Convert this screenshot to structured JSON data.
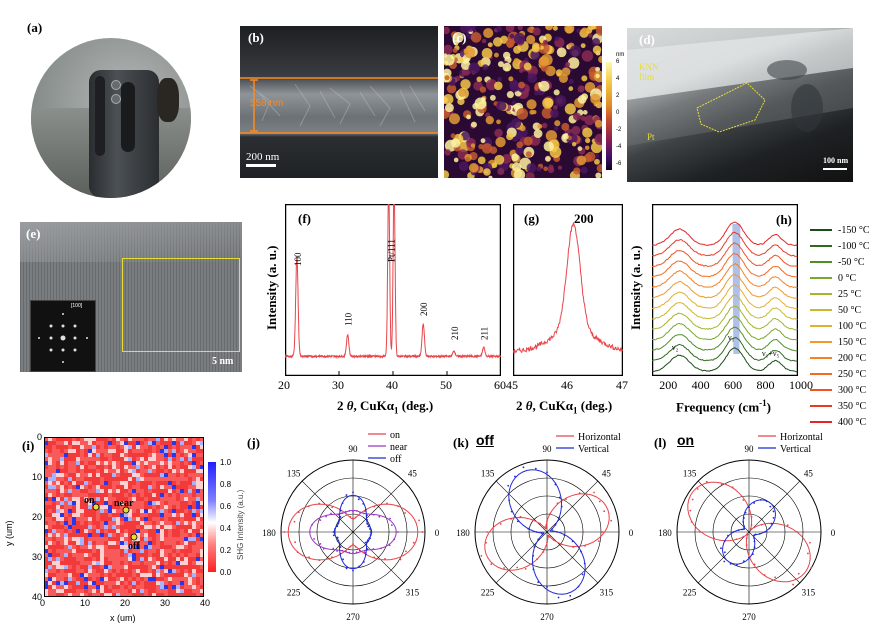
{
  "panel_a": {
    "label": "(a)"
  },
  "panel_b": {
    "label": "(b)",
    "thickness": "558 nm",
    "scalebar": "200 nm"
  },
  "panel_c": {
    "label": "(c)",
    "unit": "nm",
    "ticks": [
      "6",
      "4",
      "2",
      "0",
      "-2",
      "-4",
      "-6"
    ]
  },
  "panel_d": {
    "label": "(d)",
    "film": "KNN\nfilm",
    "film_l1": "KNN",
    "film_l2": "film",
    "substrate": "Pt",
    "scalebar": "100 nm"
  },
  "panel_e": {
    "label": "(e)",
    "scalebar": "5 nm",
    "inset_label": "[100]"
  },
  "panel_f": {
    "label": "(f)",
    "ylabel": "Intensity (a. u.)",
    "xlabel_pre": "2 ",
    "xlabel_theta": "θ",
    "xlabel_post": ", CuKα",
    "xlabel_sub": "1",
    "xlabel_end": " (deg.)",
    "xticks": [
      "20",
      "30",
      "40",
      "50",
      "60"
    ],
    "peaks": [
      "100",
      "110",
      "Pt/111",
      "200",
      "210",
      "211"
    ]
  },
  "panel_g": {
    "label": "(g)",
    "peak": "200",
    "xticks": [
      "45",
      "46",
      "47"
    ]
  },
  "panel_h": {
    "label": "(h)",
    "ylabel": "Intensity (a. u.)",
    "xlabel": "Frequency (cm",
    "xlabel_sup": "-1",
    "xlabel_end": ")",
    "xticks": [
      "200",
      "400",
      "600",
      "800",
      "1000"
    ],
    "modes": [
      "ν₂",
      "ν₁",
      "ν₁+ν₅"
    ],
    "legend": [
      "-150 °C",
      "-100 °C",
      "-50 °C",
      "0 °C",
      "25 °C",
      "50 °C",
      "100 °C",
      "150 °C",
      "200 °C",
      "250 °C",
      "300 °C",
      "350 °C",
      "400 °C"
    ],
    "colors": [
      "#1a4d1a",
      "#2f6b1f",
      "#4f8f28",
      "#7aa82a",
      "#a5b52c",
      "#c9b82f",
      "#e2b030",
      "#f09a2c",
      "#f58127",
      "#f46a24",
      "#ef5224",
      "#ea3a26",
      "#e62528"
    ]
  },
  "panel_i": {
    "label": "(i)",
    "ylabel": "y (um)",
    "xlabel": "x (um)",
    "cbar_label": "SHG Intensity (a.u.)",
    "yticks": [
      "0",
      "10",
      "20",
      "30",
      "40"
    ],
    "xticks": [
      "0",
      "10",
      "20",
      "30",
      "40"
    ],
    "cbar_ticks": [
      "1.0",
      "0.8",
      "0.6",
      "0.4",
      "0.2",
      "0.0"
    ],
    "points": [
      "on",
      "near",
      "off"
    ]
  },
  "panel_j": {
    "label": "(j)",
    "legend": [
      "on",
      "near",
      "off"
    ],
    "angles": [
      "90",
      "45",
      "0",
      "315",
      "270",
      "225",
      "180",
      "135"
    ]
  },
  "panel_k": {
    "label": "(k)",
    "tag": "off",
    "legend": [
      "Horizontal",
      "Vertical"
    ],
    "angles": [
      "90",
      "45",
      "0",
      "315",
      "270",
      "225",
      "180",
      "135"
    ]
  },
  "panel_l": {
    "label": "(l)",
    "tag": "on",
    "legend": [
      "Horizontal",
      "Vertical"
    ],
    "angles": [
      "90",
      "45",
      "0",
      "315",
      "270",
      "225",
      "180",
      "135"
    ]
  },
  "colors": {
    "orange": "#ff8a1e",
    "red": "#e8454a",
    "blue": "#1f2bd6",
    "purple": "#9a35c8",
    "yellow": "#e6dc38"
  }
}
